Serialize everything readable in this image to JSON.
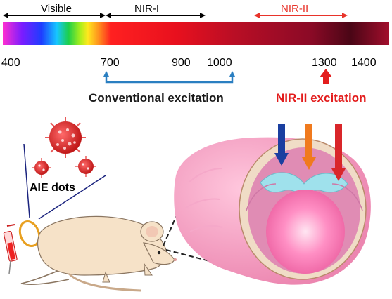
{
  "spectrum": {
    "bands": [
      {
        "label": "Visible",
        "color": "#000000"
      },
      {
        "label": "NIR-I",
        "color": "#000000"
      },
      {
        "label": "NIR-II",
        "color": "#e8332a"
      }
    ],
    "ticks": [
      "400",
      "700",
      "900",
      "1000",
      "1300",
      "1400"
    ]
  },
  "excitation": {
    "conventional": {
      "label": "Conventional excitation",
      "color": "#2a7fc1"
    },
    "nir2": {
      "label": "NIR-II excitation",
      "color": "#e31d1d"
    }
  },
  "probe": {
    "label": "AIE dots"
  },
  "beam_colors": [
    "#1a3fa0",
    "#f07a1e",
    "#d9262a"
  ]
}
